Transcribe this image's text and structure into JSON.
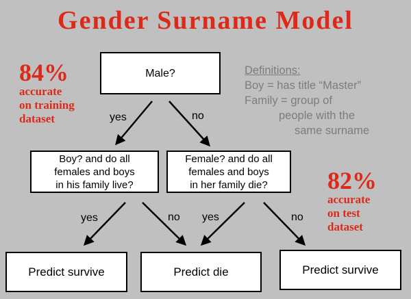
{
  "title": "Gender Surname Model",
  "training": {
    "pct": "84%",
    "line1": "accurate",
    "line2": "on training",
    "line3": "dataset"
  },
  "test": {
    "pct": "82%",
    "line1": "accurate",
    "line2": "on test",
    "line3": "dataset"
  },
  "definitions": {
    "heading": "Definitions:",
    "line1": "Boy = has title “Master”",
    "line2": "Family = group of",
    "line3": "people with the",
    "line4": "same surname"
  },
  "nodes": {
    "root": "Male?",
    "left_q": {
      "line1": "Boy? and do all",
      "line2": "females and boys",
      "line3": "in his family live?"
    },
    "right_q": {
      "line1": "Female? and do all",
      "line2": "females and boys",
      "line3": "in her family die?"
    },
    "leaf_left": "Predict survive",
    "leaf_mid": "Predict die",
    "leaf_right": "Predict survive"
  },
  "edges": {
    "root_yes": "yes",
    "root_no": "no",
    "left_yes": "yes",
    "left_no": "no",
    "right_yes": "yes",
    "right_no": "no"
  },
  "colors": {
    "accent": "#dc2a1a",
    "definitions": "#7c7c7c",
    "background": "#c0c0c0"
  }
}
